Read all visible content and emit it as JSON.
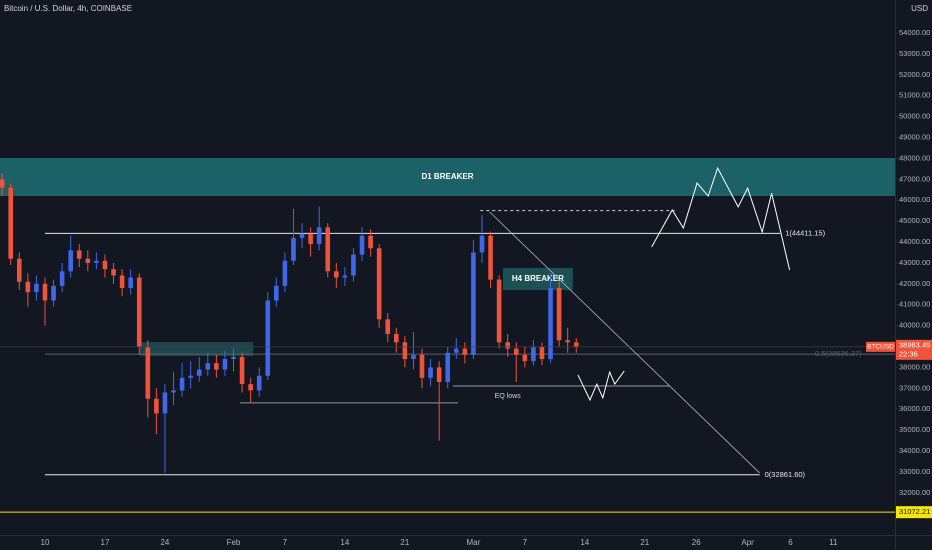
{
  "chart_data": {
    "type": "candlestick",
    "title": "Bitcoin / U.S. Dollar, 4h, COINBASE",
    "currency": "USD",
    "symbol": "BTCUSD",
    "countdown": "22:36",
    "up_color": "#3f68e8",
    "down_color": "#f0533b",
    "xlim": [
      4.75,
      109.2
    ],
    "ylim": [
      29980,
      55580
    ],
    "xticks": [
      10,
      17,
      24,
      {
        "value": 32,
        "label": "Feb"
      },
      {
        "value": 38,
        "label": "7"
      },
      {
        "value": 45,
        "label": "14"
      },
      {
        "value": 52,
        "label": "21"
      },
      {
        "value": 60,
        "label": "Mar"
      },
      {
        "value": 66,
        "label": "7"
      },
      {
        "value": 73,
        "label": "14"
      },
      {
        "value": 80,
        "label": "21"
      },
      {
        "value": 86,
        "label": "26"
      },
      {
        "value": 92,
        "label": "Apr"
      },
      {
        "value": 97,
        "label": "6"
      },
      {
        "value": 102,
        "label": "11"
      }
    ],
    "yticks": [
      {
        "value": 32000,
        "label": "32000.00"
      },
      {
        "value": 33000,
        "label": "33000.00"
      },
      {
        "value": 34000,
        "label": "34000.00"
      },
      {
        "value": 35000,
        "label": "35000.00"
      },
      {
        "value": 36000,
        "label": "36000.00"
      },
      {
        "value": 37000,
        "label": "37000.00"
      },
      {
        "value": 38000,
        "label": "38000.00"
      },
      {
        "value": 40000,
        "label": "40000.00"
      },
      {
        "value": 41000,
        "label": "41000.00"
      },
      {
        "value": 42000,
        "label": "42000.00"
      },
      {
        "value": 43000,
        "label": "43000.00"
      },
      {
        "value": 44000,
        "label": "44000.00"
      },
      {
        "value": 45000,
        "label": "45000.00"
      },
      {
        "value": 46000,
        "label": "46000.00"
      },
      {
        "value": 47000,
        "label": "47000.00"
      },
      {
        "value": 48000,
        "label": "48000.00"
      },
      {
        "value": 49000,
        "label": "49000.00"
      },
      {
        "value": 50000,
        "label": "50000.00"
      },
      {
        "value": 51000,
        "label": "51000.00"
      },
      {
        "value": 52000,
        "label": "52000.00"
      },
      {
        "value": 53000,
        "label": "53000.00"
      },
      {
        "value": 54000,
        "label": "54000.00"
      }
    ],
    "x": [
      5,
      6,
      7,
      8,
      9,
      10,
      11,
      12,
      13,
      14,
      15,
      16,
      17,
      18,
      19,
      20,
      21,
      22,
      23,
      24,
      25,
      26,
      27,
      28,
      29,
      30,
      31,
      32,
      33,
      34,
      35,
      36,
      37,
      38,
      39,
      40,
      41,
      42,
      43,
      44,
      45,
      46,
      47,
      48,
      49,
      50,
      51,
      52,
      53,
      54,
      55,
      56,
      57,
      58,
      59,
      60,
      61,
      62,
      63,
      64,
      65,
      66,
      67,
      68,
      69,
      70,
      71,
      72
    ],
    "open": [
      47000,
      46600,
      43200,
      42100,
      41600,
      42000,
      41200,
      41900,
      42600,
      43600,
      43200,
      43000,
      43100,
      42700,
      42400,
      41800,
      42300,
      39000,
      36500,
      35800,
      36800,
      36900,
      37500,
      37600,
      37900,
      38200,
      37900,
      38400,
      38500,
      37200,
      36900,
      37600,
      41200,
      41900,
      43100,
      44200,
      44400,
      43900,
      44700,
      42600,
      42300,
      42400,
      43400,
      44300,
      43700,
      40300,
      39600,
      39200,
      38400,
      38600,
      37500,
      38000,
      37300,
      38700,
      38900,
      38600,
      43500,
      44300,
      42200,
      39200,
      38900,
      38600,
      38300,
      39000,
      38400,
      41800,
      39300,
      39200
    ],
    "high": [
      47300,
      46800,
      43500,
      42500,
      42400,
      42300,
      42200,
      43000,
      44300,
      43900,
      43600,
      43500,
      43400,
      43000,
      42700,
      42700,
      42500,
      39300,
      37000,
      37200,
      37800,
      38200,
      38300,
      38500,
      38700,
      38600,
      38800,
      38900,
      38700,
      37500,
      38000,
      41600,
      42300,
      43500,
      45600,
      44900,
      44700,
      45700,
      44900,
      43000,
      42800,
      43700,
      44700,
      44600,
      43900,
      40600,
      39900,
      39500,
      39700,
      38900,
      38400,
      38300,
      39000,
      39400,
      39200,
      44100,
      45300,
      44500,
      42400,
      39600,
      39200,
      39000,
      39300,
      39200,
      42500,
      42100,
      39900,
      39400
    ],
    "low": [
      46200,
      42900,
      41700,
      40900,
      41200,
      40000,
      40900,
      41600,
      42300,
      42800,
      42600,
      42700,
      42300,
      42000,
      41400,
      41500,
      38600,
      35600,
      34800,
      32950,
      36200,
      36600,
      37000,
      37300,
      37600,
      37500,
      37600,
      37800,
      36800,
      36300,
      36600,
      37400,
      40900,
      41600,
      42900,
      43700,
      43300,
      43600,
      42300,
      41800,
      41900,
      42100,
      43100,
      43300,
      39900,
      39200,
      38700,
      38000,
      37900,
      37000,
      37100,
      34500,
      37000,
      38400,
      38200,
      38400,
      43000,
      41800,
      38900,
      38500,
      37300,
      38000,
      38100,
      38100,
      38200,
      39000,
      38700,
      38700
    ],
    "close": [
      46600,
      43200,
      42100,
      41600,
      42000,
      41200,
      41900,
      42600,
      43600,
      43200,
      43000,
      43100,
      42700,
      42400,
      41800,
      42300,
      39000,
      36500,
      35800,
      36800,
      36900,
      37500,
      37600,
      37900,
      38200,
      37900,
      38400,
      38500,
      37200,
      36900,
      37600,
      41200,
      41900,
      43100,
      44200,
      44400,
      43900,
      44700,
      42600,
      42300,
      42400,
      43400,
      44300,
      43700,
      40300,
      39600,
      39200,
      38400,
      38600,
      37500,
      38000,
      37300,
      38700,
      38900,
      38600,
      43500,
      44300,
      42200,
      39200,
      38900,
      38600,
      38300,
      39000,
      38400,
      41800,
      39300,
      39200,
      38983.49
    ],
    "zones": [
      {
        "label": "D1 BREAKER",
        "low": 46200,
        "high": 48020,
        "from": 4.75,
        "to": 109.2,
        "color": "#1f6f73"
      },
      {
        "label": "H4 BREAKER",
        "low": 41700,
        "high": 42760,
        "from": 63.45,
        "to": 71.6,
        "color": "#1f5a5e"
      },
      {
        "low": 38550,
        "high": 39210,
        "from": 21.1,
        "to": 34.3,
        "color": "#1f4f52"
      }
    ],
    "levels": [
      {
        "value": 44411.15,
        "label": "1(44411.15)",
        "from": 10,
        "to": 95.8,
        "color": "#e8e8e8"
      },
      {
        "value": 38636.37,
        "label": "0.5(38636.37)",
        "from": 10,
        "to": 109.2,
        "color": "#5d606b"
      },
      {
        "value": 32861.6,
        "label": "0(32861.60)",
        "from": 10,
        "to": 93.4,
        "color": "#e8e8e8"
      },
      {
        "value": 36300,
        "from": 32.75,
        "to": 58.2,
        "color": "#9598a1"
      },
      {
        "value": 37110,
        "from": 57.6,
        "to": 82.9,
        "color": "#9598a1"
      },
      {
        "value": 45500,
        "from": 60.8,
        "to": 83.5,
        "color": "#d1d4dc",
        "dashed": true
      },
      {
        "value": 31072.21,
        "from": 4.75,
        "to": 109.2,
        "color": "#f7e600",
        "axis_tag": true
      }
    ],
    "notes": [
      {
        "text": "EQ lows",
        "x": 64,
        "y": 36630
      }
    ],
    "trendlines": [
      {
        "x": [
          61.9,
          93.4
        ],
        "y": [
          45436,
          32950
        ],
        "color": "#b2b5be"
      }
    ],
    "projections": [
      {
        "x": [
          80.8,
          83.2,
          84.5,
          86.1,
          87.4,
          88.5,
          90.9,
          92.0,
          93.7,
          94.8,
          96.9
        ],
        "y": [
          43760,
          45530,
          44670,
          46820,
          46200,
          47540,
          45680,
          46580,
          44480,
          46340,
          42660
        ],
        "color": "#ffffff"
      },
      {
        "x": [
          72.2,
          73.6,
          74.4,
          75.1,
          75.9,
          76.5,
          77.6
        ],
        "y": [
          37640,
          36440,
          37200,
          36540,
          37780,
          37200,
          37830
        ],
        "color": "#ffffff"
      }
    ]
  }
}
